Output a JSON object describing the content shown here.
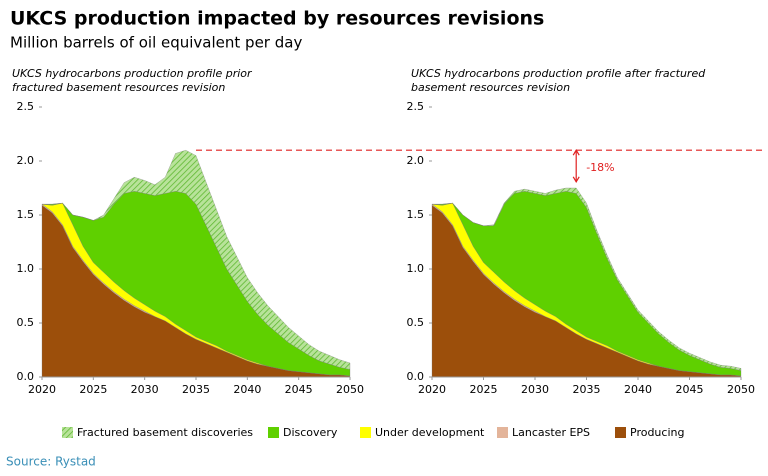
{
  "title": "UKCS production impacted by resources revisions",
  "subtitle": "Million barrels of oil equivalent per day",
  "source": "Source: Rystad",
  "chart_data": [
    {
      "type": "stacked_area",
      "title": [
        "UKCS hydrocarbons production profile prior",
        "fractured basement resources revision"
      ],
      "x": [
        2020,
        2021,
        2022,
        2023,
        2024,
        2025,
        2026,
        2027,
        2028,
        2029,
        2030,
        2031,
        2032,
        2033,
        2034,
        2035,
        2036,
        2037,
        2038,
        2039,
        2040,
        2041,
        2042,
        2043,
        2044,
        2045,
        2046,
        2047,
        2048,
        2049,
        2050
      ],
      "xlim": [
        2020,
        2050
      ],
      "xticks": [
        2020,
        2025,
        2030,
        2035,
        2040,
        2045,
        2050
      ],
      "ylim": [
        0,
        2.5
      ],
      "yticks": [
        {
          "value": 0,
          "label": "0.0"
        },
        0.5,
        {
          "value": 1,
          "label": "1.0"
        },
        1.5,
        {
          "value": 2,
          "label": "2.0"
        },
        2.5
      ],
      "series": [
        {
          "name": "Producing",
          "color": "#9c4f0b",
          "values": [
            1.59,
            1.52,
            1.4,
            1.2,
            1.07,
            0.95,
            0.86,
            0.78,
            0.71,
            0.65,
            0.6,
            0.56,
            0.52,
            0.46,
            0.4,
            0.35,
            0.31,
            0.27,
            0.23,
            0.19,
            0.15,
            0.12,
            0.1,
            0.08,
            0.06,
            0.05,
            0.04,
            0.03,
            0.02,
            0.02,
            0.01
          ]
        },
        {
          "name": "Lancaster EPS",
          "color": "#e3b49a",
          "values": [
            0.01,
            0.01,
            0.01,
            0.01,
            0.01,
            0.01,
            0.01,
            0.01,
            0.01,
            0.01,
            0.01,
            0,
            0,
            0,
            0,
            0,
            0,
            0,
            0,
            0,
            0,
            0,
            0,
            0,
            0,
            0,
            0,
            0,
            0,
            0,
            0
          ]
        },
        {
          "name": "Under development",
          "color": "#ffff00",
          "values": [
            0,
            0.06,
            0.2,
            0.2,
            0.13,
            0.1,
            0.1,
            0.09,
            0.08,
            0.07,
            0.06,
            0.05,
            0.04,
            0.03,
            0.03,
            0.02,
            0.02,
            0.02,
            0.01,
            0.01,
            0.01,
            0.01,
            0,
            0,
            0,
            0,
            0,
            0,
            0,
            0,
            0
          ]
        },
        {
          "name": "Discovery",
          "color": "#5fd000",
          "values": [
            0,
            0.01,
            0,
            0.09,
            0.27,
            0.39,
            0.51,
            0.72,
            0.9,
            0.99,
            1.03,
            1.07,
            1.14,
            1.23,
            1.27,
            1.23,
            1.07,
            0.91,
            0.76,
            0.65,
            0.54,
            0.45,
            0.38,
            0.32,
            0.26,
            0.21,
            0.16,
            0.12,
            0.1,
            0.07,
            0.06
          ]
        },
        {
          "name": "Fractured basement discoveries",
          "color": "#b8e39a",
          "hatch": true,
          "values": [
            0,
            0,
            0,
            0,
            0,
            0,
            0.02,
            0.05,
            0.1,
            0.13,
            0.12,
            0.1,
            0.15,
            0.35,
            0.4,
            0.45,
            0.4,
            0.35,
            0.3,
            0.26,
            0.22,
            0.2,
            0.18,
            0.16,
            0.14,
            0.12,
            0.1,
            0.09,
            0.08,
            0.07,
            0.06
          ]
        }
      ]
    },
    {
      "type": "stacked_area",
      "title": [
        "UKCS hydrocarbons production profile after fractured",
        "basement resources revision"
      ],
      "x": [
        2020,
        2021,
        2022,
        2023,
        2024,
        2025,
        2026,
        2027,
        2028,
        2029,
        2030,
        2031,
        2032,
        2033,
        2034,
        2035,
        2036,
        2037,
        2038,
        2039,
        2040,
        2041,
        2042,
        2043,
        2044,
        2045,
        2046,
        2047,
        2048,
        2049,
        2050
      ],
      "xlim": [
        2020,
        2050
      ],
      "xticks": [
        2020,
        2025,
        2030,
        2035,
        2040,
        2045,
        2050
      ],
      "ylim": [
        0,
        2.5
      ],
      "yticks": [
        {
          "value": 0,
          "label": "0.0"
        },
        0.5,
        {
          "value": 1,
          "label": "1.0"
        },
        1.5,
        {
          "value": 2,
          "label": "2.0"
        },
        2.5
      ],
      "series": [
        {
          "name": "Producing",
          "color": "#9c4f0b",
          "values": [
            1.59,
            1.52,
            1.4,
            1.2,
            1.07,
            0.95,
            0.86,
            0.78,
            0.71,
            0.65,
            0.6,
            0.56,
            0.52,
            0.46,
            0.4,
            0.35,
            0.31,
            0.27,
            0.23,
            0.19,
            0.15,
            0.12,
            0.1,
            0.08,
            0.06,
            0.05,
            0.04,
            0.03,
            0.02,
            0.02,
            0.01
          ]
        },
        {
          "name": "Lancaster EPS",
          "color": "#e3b49a",
          "values": [
            0.01,
            0.01,
            0.01,
            0.01,
            0.01,
            0.01,
            0.01,
            0.01,
            0.01,
            0.01,
            0.01,
            0,
            0,
            0,
            0,
            0,
            0,
            0,
            0,
            0,
            0,
            0,
            0,
            0,
            0,
            0,
            0,
            0,
            0,
            0,
            0
          ]
        },
        {
          "name": "Under development",
          "color": "#ffff00",
          "values": [
            0,
            0.06,
            0.2,
            0.2,
            0.13,
            0.1,
            0.1,
            0.09,
            0.08,
            0.07,
            0.06,
            0.05,
            0.04,
            0.03,
            0.03,
            0.02,
            0.02,
            0.02,
            0.01,
            0.01,
            0.01,
            0.01,
            0,
            0,
            0,
            0,
            0,
            0,
            0,
            0,
            0
          ]
        },
        {
          "name": "Discovery",
          "color": "#5fd000",
          "values": [
            0,
            0.01,
            0,
            0.09,
            0.22,
            0.34,
            0.43,
            0.72,
            0.9,
            0.99,
            1.03,
            1.07,
            1.14,
            1.23,
            1.27,
            1.2,
            1.0,
            0.81,
            0.66,
            0.55,
            0.44,
            0.37,
            0.3,
            0.24,
            0.19,
            0.15,
            0.12,
            0.09,
            0.07,
            0.06,
            0.05
          ]
        },
        {
          "name": "Fractured basement discoveries",
          "color": "#b8e39a",
          "hatch": true,
          "values": [
            0,
            0,
            0,
            0,
            0,
            0,
            0.01,
            0.01,
            0.02,
            0.02,
            0.02,
            0.02,
            0.03,
            0.03,
            0.05,
            0.04,
            0.03,
            0.03,
            0.02,
            0.02,
            0.02,
            0.02,
            0.02,
            0.02,
            0.02,
            0.02,
            0.02,
            0.02,
            0.02,
            0.02,
            0.02
          ]
        }
      ],
      "annotation": {
        "text": "-18%",
        "x": 2034,
        "y_from": 2.1,
        "y_to": 1.77,
        "line_from_x": 2035,
        "color": "#e02020"
      }
    }
  ]
}
